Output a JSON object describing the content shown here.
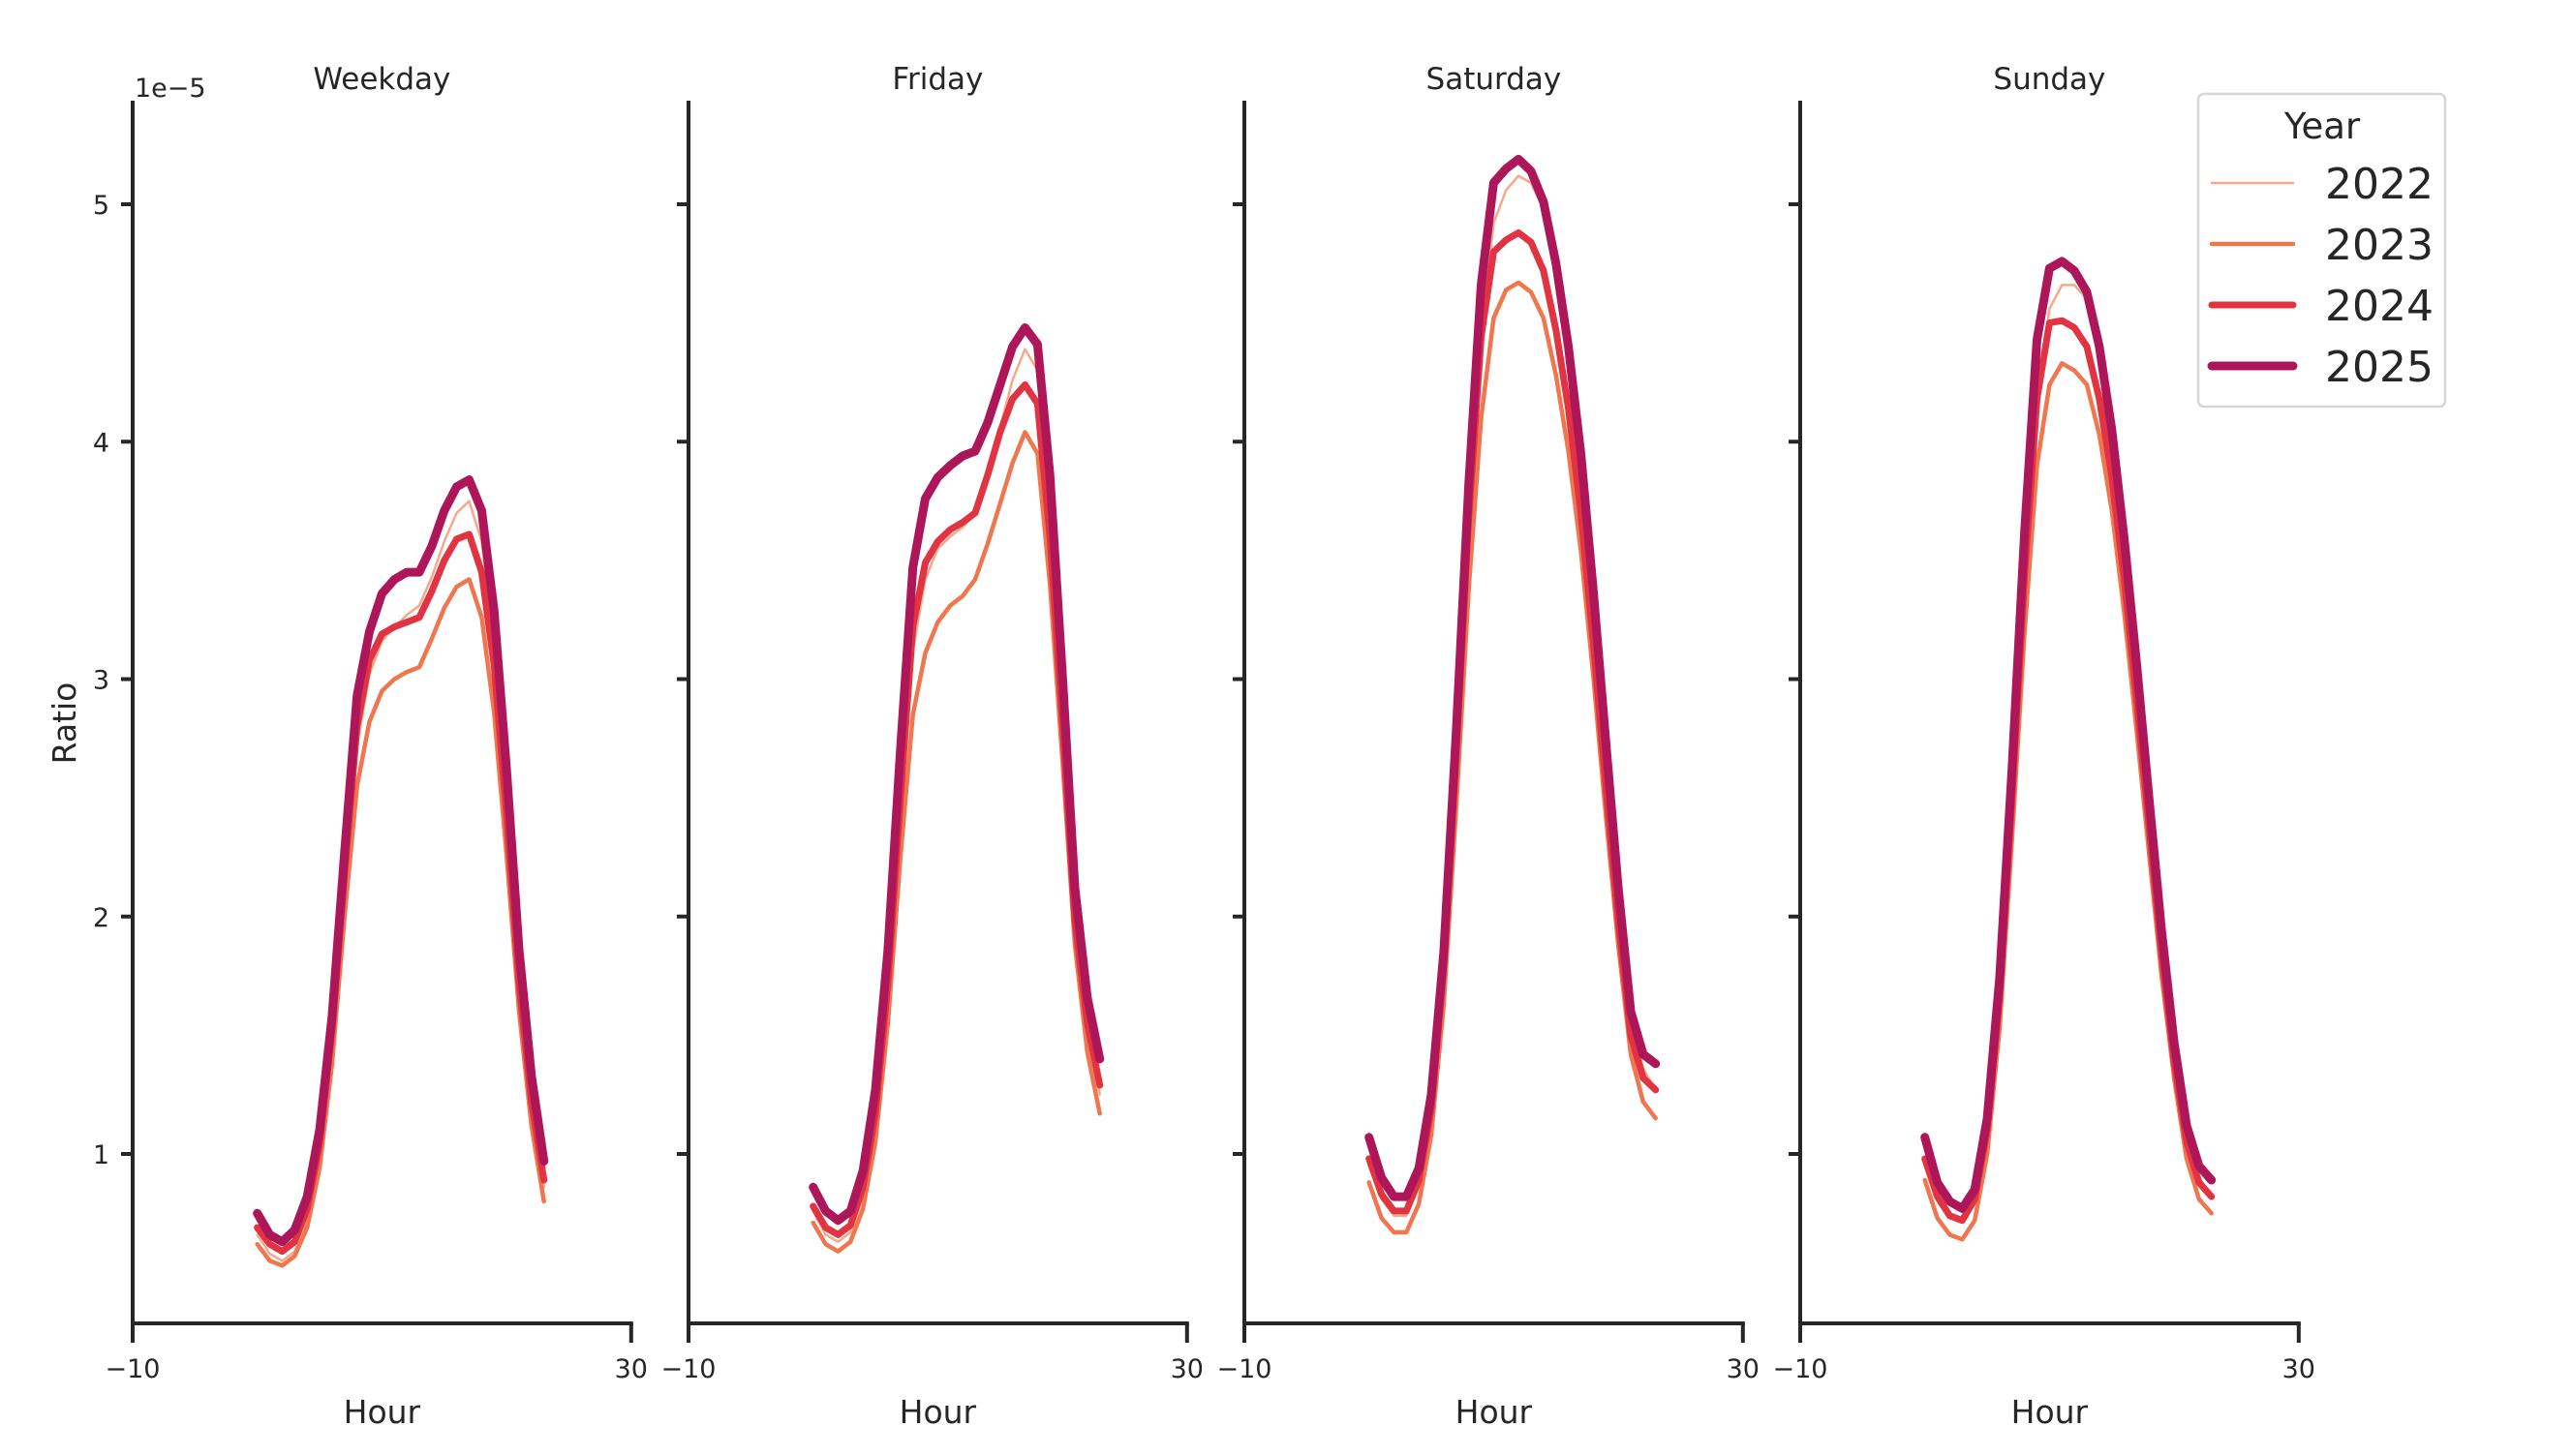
{
  "figure": {
    "y_offset_label": "1e−5",
    "y_axis_label": "Ratio",
    "x_axis_label": "Hour",
    "x_tick_labels": [
      "−10",
      "30"
    ],
    "y_tick_labels": [
      "1",
      "2",
      "3",
      "4",
      "5"
    ]
  },
  "legend": {
    "title": "Year",
    "items": [
      {
        "label": "2022",
        "color": "#f6a98a",
        "width": 2.5
      },
      {
        "label": "2023",
        "color": "#f07650",
        "width": 4.5
      },
      {
        "label": "2024",
        "color": "#e13342",
        "width": 7
      },
      {
        "label": "2025",
        "color": "#ad1759",
        "width": 9
      }
    ]
  },
  "chart_data": {
    "type": "line",
    "title": "",
    "xlabel": "Hour",
    "ylabel": "Ratio",
    "y_scale_note": "values in units of 1e-5",
    "xlim": [
      -10,
      30
    ],
    "ylim": [
      0.285,
      5.44
    ],
    "x_ticks": [
      -10,
      30
    ],
    "y_ticks": [
      1,
      2,
      3,
      4,
      5
    ],
    "grid": false,
    "legend_position": "upper right",
    "legend_title": "Year",
    "x": [
      0,
      1,
      2,
      3,
      4,
      5,
      6,
      7,
      8,
      9,
      10,
      11,
      12,
      13,
      14,
      15,
      16,
      17,
      18,
      19,
      20,
      21,
      22,
      23
    ],
    "panels": [
      {
        "title": "Weekday",
        "series": [
          {
            "name": "2022",
            "values": [
              0.66,
              0.58,
              0.55,
              0.59,
              0.72,
              0.98,
              1.45,
              2.1,
              2.72,
              3.02,
              3.16,
              3.22,
              3.27,
              3.31,
              3.43,
              3.58,
              3.7,
              3.75,
              3.58,
              3.15,
              2.48,
              1.75,
              1.22,
              0.86
            ]
          },
          {
            "name": "2023",
            "values": [
              0.62,
              0.55,
              0.53,
              0.57,
              0.69,
              0.94,
              1.38,
              2.0,
              2.55,
              2.82,
              2.95,
              3.0,
              3.03,
              3.05,
              3.17,
              3.3,
              3.39,
              3.42,
              3.26,
              2.86,
              2.26,
              1.6,
              1.12,
              0.8
            ]
          },
          {
            "name": "2024",
            "values": [
              0.69,
              0.62,
              0.59,
              0.63,
              0.77,
              1.04,
              1.52,
              2.18,
              2.8,
              3.08,
              3.19,
              3.22,
              3.24,
              3.26,
              3.37,
              3.5,
              3.59,
              3.61,
              3.45,
              3.06,
              2.43,
              1.72,
              1.22,
              0.89
            ]
          },
          {
            "name": "2025",
            "values": [
              0.75,
              0.66,
              0.63,
              0.68,
              0.82,
              1.1,
              1.58,
              2.27,
              2.93,
              3.2,
              3.36,
              3.42,
              3.45,
              3.45,
              3.56,
              3.71,
              3.81,
              3.84,
              3.71,
              3.29,
              2.62,
              1.86,
              1.33,
              0.97
            ]
          }
        ]
      },
      {
        "title": "Friday",
        "series": [
          {
            "name": "2022",
            "values": [
              0.76,
              0.66,
              0.63,
              0.67,
              0.82,
              1.13,
              1.66,
              2.42,
              3.12,
              3.42,
              3.55,
              3.6,
              3.64,
              3.7,
              3.86,
              4.06,
              4.26,
              4.39,
              4.3,
              3.72,
              2.92,
              2.05,
              1.55,
              1.25
            ]
          },
          {
            "name": "2023",
            "values": [
              0.71,
              0.62,
              0.59,
              0.63,
              0.77,
              1.05,
              1.55,
              2.25,
              2.85,
              3.11,
              3.24,
              3.31,
              3.35,
              3.42,
              3.57,
              3.74,
              3.91,
              4.04,
              3.95,
              3.4,
              2.66,
              1.88,
              1.43,
              1.17
            ]
          },
          {
            "name": "2024",
            "values": [
              0.78,
              0.69,
              0.66,
              0.7,
              0.86,
              1.17,
              1.72,
              2.5,
              3.22,
              3.49,
              3.58,
              3.63,
              3.66,
              3.7,
              3.86,
              4.04,
              4.18,
              4.24,
              4.16,
              3.6,
              2.82,
              1.98,
              1.55,
              1.29
            ]
          },
          {
            "name": "2025",
            "values": [
              0.86,
              0.76,
              0.72,
              0.76,
              0.93,
              1.27,
              1.86,
              2.7,
              3.47,
              3.76,
              3.85,
              3.9,
              3.94,
              3.96,
              4.08,
              4.24,
              4.4,
              4.48,
              4.41,
              3.86,
              3.02,
              2.12,
              1.66,
              1.4
            ]
          }
        ]
      },
      {
        "title": "Saturday",
        "series": [
          {
            "name": "2022",
            "values": [
              0.95,
              0.81,
              0.74,
              0.74,
              0.86,
              1.17,
              1.76,
              2.65,
              3.66,
              4.45,
              4.92,
              5.06,
              5.12,
              5.09,
              4.98,
              4.73,
              4.38,
              3.92,
              3.35,
              2.72,
              2.11,
              1.6,
              1.36,
              1.27
            ]
          },
          {
            "name": "2023",
            "values": [
              0.88,
              0.73,
              0.67,
              0.67,
              0.79,
              1.08,
              1.63,
              2.46,
              3.38,
              4.1,
              4.52,
              4.64,
              4.67,
              4.63,
              4.52,
              4.28,
              3.96,
              3.54,
              3.01,
              2.43,
              1.88,
              1.42,
              1.22,
              1.15
            ]
          },
          {
            "name": "2024",
            "values": [
              0.98,
              0.83,
              0.76,
              0.76,
              0.89,
              1.19,
              1.79,
              2.69,
              3.68,
              4.44,
              4.8,
              4.85,
              4.88,
              4.84,
              4.72,
              4.47,
              4.14,
              3.7,
              3.15,
              2.55,
              1.98,
              1.5,
              1.32,
              1.27
            ]
          },
          {
            "name": "2025",
            "values": [
              1.07,
              0.9,
              0.82,
              0.82,
              0.94,
              1.25,
              1.85,
              2.78,
              3.82,
              4.66,
              5.09,
              5.15,
              5.19,
              5.14,
              5.01,
              4.75,
              4.4,
              3.95,
              3.37,
              2.74,
              2.12,
              1.6,
              1.42,
              1.38
            ]
          }
        ]
      },
      {
        "title": "Sunday",
        "series": [
          {
            "name": "2022",
            "values": [
              0.95,
              0.81,
              0.74,
              0.72,
              0.81,
              1.1,
              1.66,
              2.5,
              3.43,
              4.17,
              4.56,
              4.66,
              4.66,
              4.6,
              4.38,
              4.04,
              3.58,
              3.05,
              2.48,
              1.93,
              1.47,
              1.1,
              0.9,
              0.82
            ]
          },
          {
            "name": "2023",
            "values": [
              0.89,
              0.73,
              0.66,
              0.64,
              0.72,
              1.0,
              1.53,
              2.33,
              3.2,
              3.9,
              4.24,
              4.33,
              4.3,
              4.24,
              4.03,
              3.71,
              3.28,
              2.78,
              2.26,
              1.75,
              1.32,
              0.98,
              0.81,
              0.75
            ]
          },
          {
            "name": "2024",
            "values": [
              0.98,
              0.82,
              0.74,
              0.72,
              0.81,
              1.1,
              1.66,
              2.51,
              3.44,
              4.18,
              4.5,
              4.51,
              4.48,
              4.4,
              4.18,
              3.85,
              3.42,
              2.91,
              2.37,
              1.84,
              1.39,
              1.05,
              0.88,
              0.82
            ]
          },
          {
            "name": "2025",
            "values": [
              1.07,
              0.88,
              0.8,
              0.77,
              0.85,
              1.15,
              1.74,
              2.63,
              3.62,
              4.43,
              4.73,
              4.76,
              4.72,
              4.63,
              4.4,
              4.05,
              3.59,
              3.06,
              2.49,
              1.94,
              1.47,
              1.12,
              0.95,
              0.89
            ]
          }
        ]
      }
    ]
  }
}
